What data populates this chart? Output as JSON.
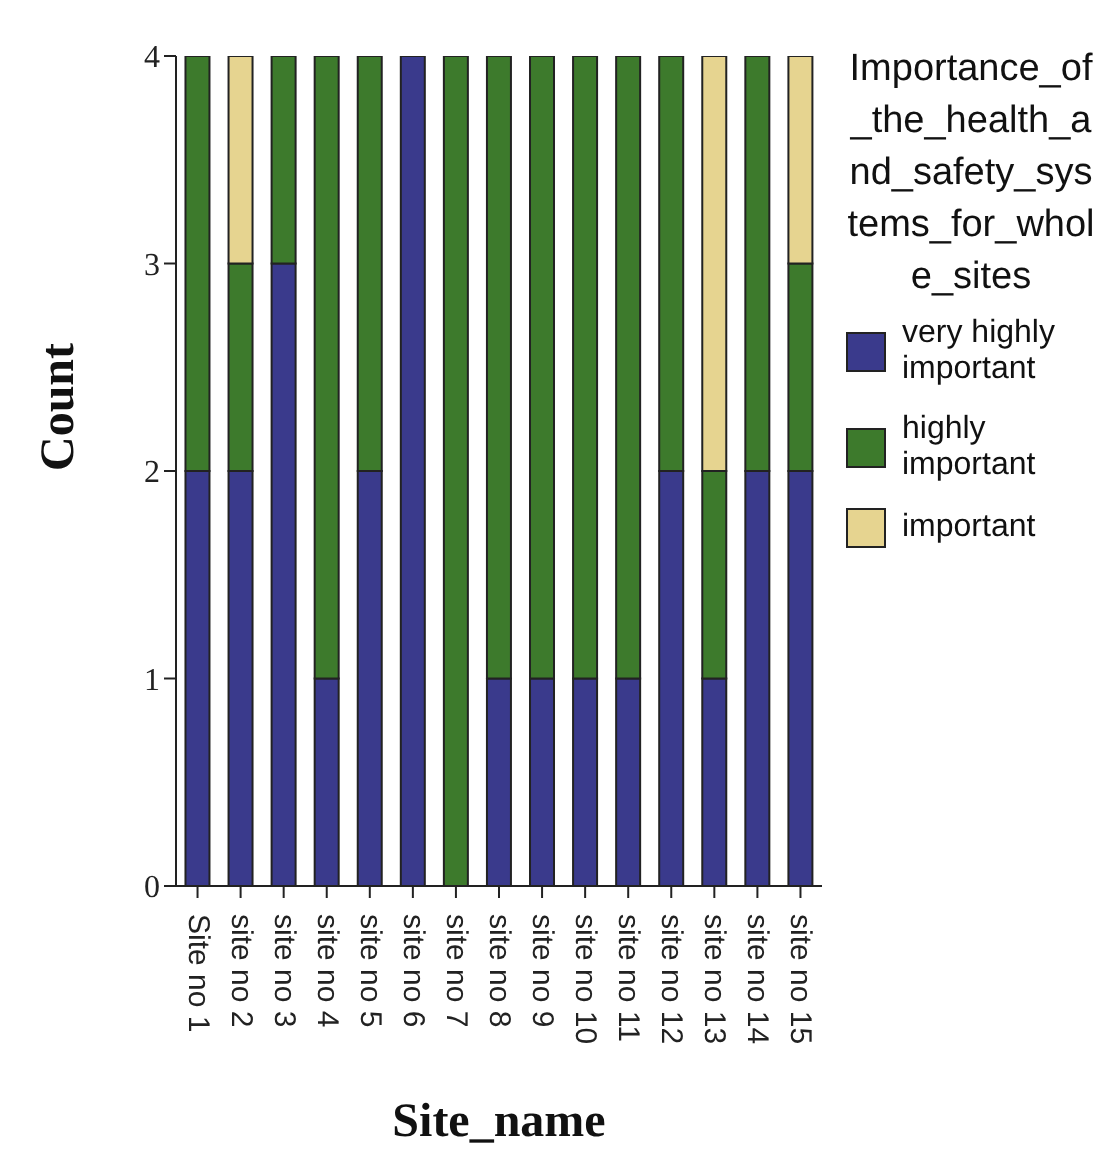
{
  "chart_data": {
    "type": "bar",
    "stacked": true,
    "xlabel": "Site_name",
    "ylabel": "Count",
    "legend_title": "Importance_of_the_health_and_safety_systems_for_whole_sites",
    "legend": "right",
    "grid": false,
    "categories": [
      "Site no 1",
      "site no 2",
      "site no 3",
      "site no 4",
      "site no 5",
      "site no 6",
      "site no 7",
      "site no 8",
      "site no 9",
      "site no 10",
      "site no 11",
      "site no 12",
      "site no 13",
      "site no 14",
      "site no 15"
    ],
    "series": [
      {
        "name": "very highly important",
        "color": "#3a3a8c",
        "values": [
          2,
          2,
          3,
          1,
          2,
          4,
          0,
          1,
          1,
          1,
          1,
          2,
          1,
          2,
          2
        ]
      },
      {
        "name": "highly important",
        "color": "#3d7a2c",
        "values": [
          2,
          1,
          1,
          3,
          2,
          0,
          4,
          3,
          3,
          3,
          3,
          2,
          1,
          2,
          1
        ]
      },
      {
        "name": "important",
        "color": "#e6d490",
        "values": [
          0,
          1,
          0,
          0,
          0,
          0,
          0,
          0,
          0,
          0,
          0,
          0,
          2,
          0,
          1
        ]
      }
    ],
    "ylim": [
      0,
      4
    ],
    "yticks": [
      0,
      1,
      2,
      3,
      4
    ]
  }
}
